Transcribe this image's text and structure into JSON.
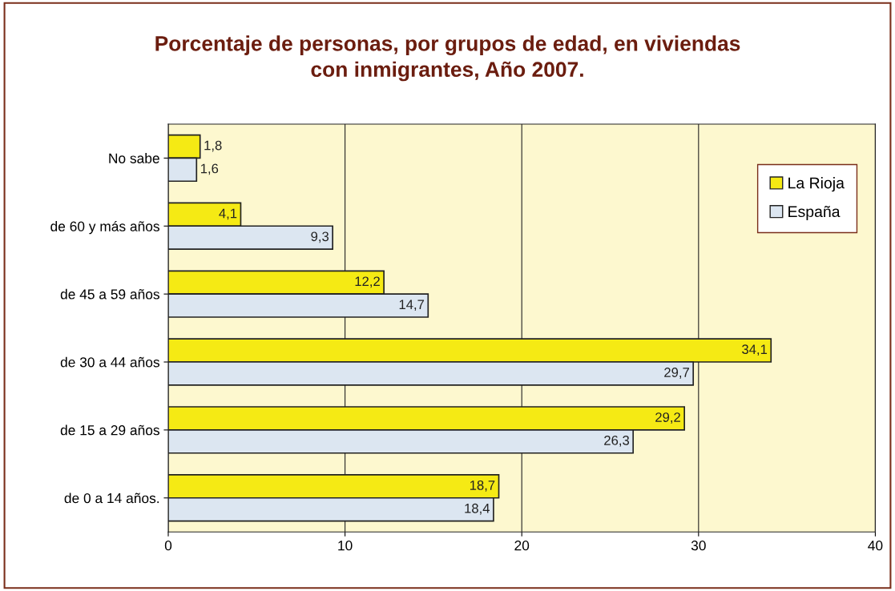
{
  "chart_data": {
    "type": "bar",
    "orientation": "horizontal",
    "title": "Porcentaje de personas, por grupos de edad, en viviendas\ncon inmigrantes, Año 2007.",
    "categories": [
      "No sabe",
      "de 60 y más años",
      "de 45 a 59 años",
      "de 30 a 44 años",
      "de 15 a 29 años",
      "de 0 a 14 años."
    ],
    "series": [
      {
        "name": "La Rioja",
        "color": "#f5ea14",
        "values": [
          1.8,
          4.1,
          12.2,
          34.1,
          29.2,
          18.7
        ],
        "value_labels": [
          "1,8",
          "4,1",
          "12,2",
          "34,1",
          "29,2",
          "18,7"
        ]
      },
      {
        "name": "España",
        "color": "#dce6f1",
        "values": [
          1.6,
          9.3,
          14.7,
          29.7,
          26.3,
          18.4
        ],
        "value_labels": [
          "1,6",
          "9,3",
          "14,7",
          "29,7",
          "26,3",
          "18,4"
        ]
      }
    ],
    "xlim": [
      0,
      40
    ],
    "xticks": [
      0,
      10,
      20,
      30,
      40
    ],
    "grid": "x",
    "legend": "top right"
  }
}
